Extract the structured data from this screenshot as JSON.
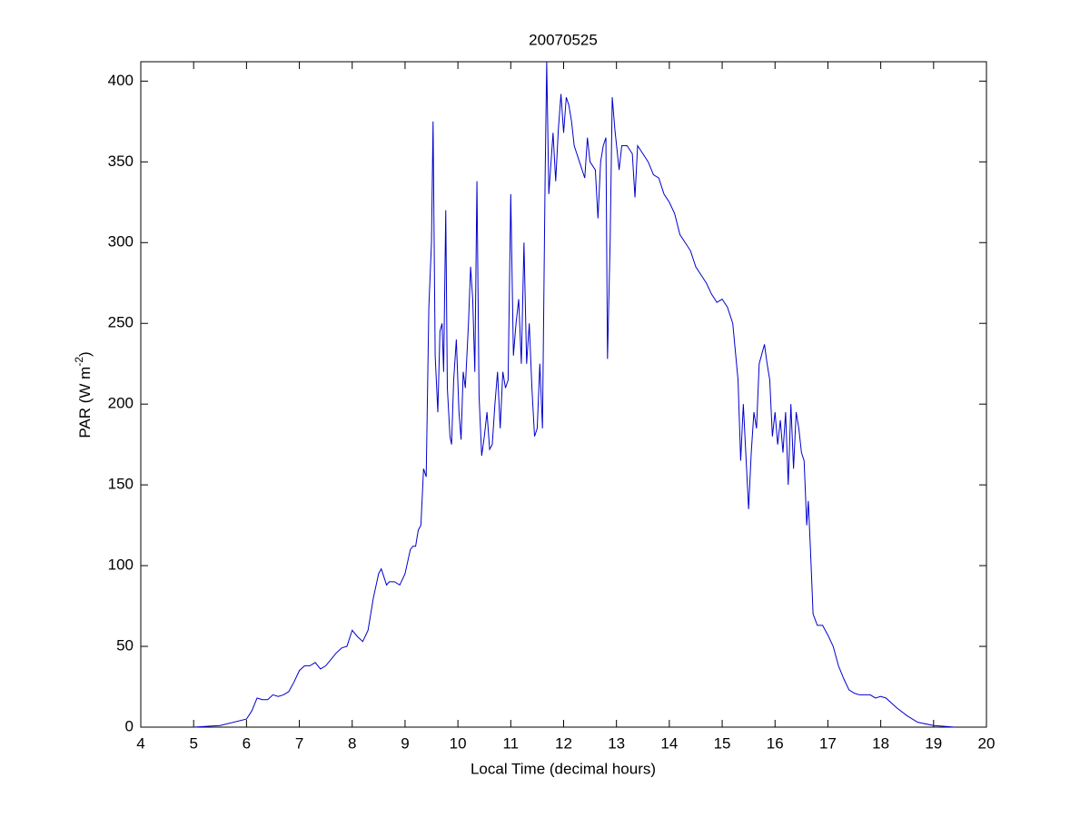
{
  "chart_data": {
    "type": "line",
    "title": "20070525",
    "xlabel": "Local Time (decimal hours)",
    "ylabel": [
      "PAR (W m",
      "-2",
      ")"
    ],
    "color": "#0000cc",
    "grid": false,
    "xlim": [
      4,
      20
    ],
    "xticks": [
      4,
      5,
      6,
      7,
      8,
      9,
      10,
      11,
      12,
      13,
      14,
      15,
      16,
      17,
      18,
      19,
      20
    ],
    "ylim": [
      0,
      412
    ],
    "yticks": [
      0,
      50,
      100,
      150,
      200,
      250,
      300,
      350,
      400
    ],
    "x": [
      5.0,
      5.5,
      6.0,
      6.1,
      6.2,
      6.3,
      6.4,
      6.5,
      6.6,
      6.7,
      6.8,
      6.9,
      7.0,
      7.1,
      7.2,
      7.3,
      7.4,
      7.5,
      7.6,
      7.7,
      7.8,
      7.9,
      8.0,
      8.1,
      8.2,
      8.3,
      8.4,
      8.5,
      8.55,
      8.6,
      8.65,
      8.7,
      8.8,
      8.9,
      9.0,
      9.1,
      9.15,
      9.2,
      9.25,
      9.3,
      9.35,
      9.4,
      9.45,
      9.5,
      9.53,
      9.57,
      9.62,
      9.66,
      9.7,
      9.73,
      9.77,
      9.8,
      9.85,
      9.88,
      9.92,
      9.97,
      10.02,
      10.06,
      10.1,
      10.14,
      10.2,
      10.24,
      10.28,
      10.32,
      10.36,
      10.4,
      10.45,
      10.5,
      10.55,
      10.6,
      10.65,
      10.7,
      10.75,
      10.8,
      10.85,
      10.9,
      10.95,
      11.0,
      11.05,
      11.1,
      11.15,
      11.2,
      11.25,
      11.3,
      11.35,
      11.4,
      11.45,
      11.5,
      11.55,
      11.6,
      11.65,
      11.68,
      11.72,
      11.8,
      11.85,
      11.9,
      11.95,
      12.0,
      12.05,
      12.1,
      12.15,
      12.2,
      12.3,
      12.4,
      12.45,
      12.5,
      12.6,
      12.65,
      12.7,
      12.75,
      12.8,
      12.83,
      12.88,
      12.92,
      12.97,
      13.05,
      13.1,
      13.2,
      13.3,
      13.35,
      13.4,
      13.5,
      13.6,
      13.7,
      13.8,
      13.9,
      14.0,
      14.1,
      14.2,
      14.3,
      14.4,
      14.5,
      14.6,
      14.7,
      14.8,
      14.9,
      15.0,
      15.1,
      15.2,
      15.3,
      15.35,
      15.4,
      15.5,
      15.55,
      15.6,
      15.65,
      15.7,
      15.8,
      15.85,
      15.9,
      15.95,
      16.0,
      16.05,
      16.1,
      16.15,
      16.2,
      16.25,
      16.3,
      16.35,
      16.4,
      16.45,
      16.5,
      16.55,
      16.6,
      16.63,
      16.67,
      16.72,
      16.8,
      16.9,
      17.0,
      17.1,
      17.2,
      17.3,
      17.4,
      17.5,
      17.6,
      17.8,
      17.9,
      18.0,
      18.1,
      18.3,
      18.5,
      18.7,
      19.0,
      19.4
    ],
    "values": [
      0,
      1,
      5,
      10,
      18,
      17,
      17,
      20,
      19,
      20,
      22,
      28,
      35,
      38,
      38,
      40,
      36,
      38,
      42,
      46,
      49,
      50,
      60,
      56,
      53,
      60,
      80,
      95,
      98,
      93,
      88,
      90,
      90,
      88,
      95,
      110,
      112,
      112,
      122,
      125,
      160,
      155,
      260,
      300,
      375,
      230,
      195,
      245,
      250,
      220,
      320,
      210,
      180,
      175,
      215,
      240,
      195,
      178,
      220,
      210,
      250,
      285,
      265,
      220,
      338,
      205,
      168,
      180,
      195,
      172,
      175,
      200,
      220,
      185,
      220,
      210,
      215,
      330,
      230,
      250,
      265,
      225,
      300,
      225,
      250,
      210,
      180,
      185,
      225,
      185,
      340,
      412,
      330,
      368,
      338,
      370,
      392,
      368,
      390,
      385,
      375,
      360,
      350,
      340,
      365,
      350,
      345,
      315,
      350,
      360,
      365,
      228,
      300,
      390,
      370,
      345,
      360,
      360,
      355,
      328,
      360,
      355,
      350,
      342,
      340,
      330,
      325,
      318,
      305,
      300,
      295,
      285,
      280,
      275,
      268,
      263,
      265,
      260,
      250,
      215,
      165,
      200,
      135,
      170,
      195,
      185,
      225,
      237,
      225,
      215,
      180,
      195,
      175,
      190,
      170,
      195,
      150,
      200,
      160,
      195,
      185,
      170,
      165,
      125,
      140,
      110,
      70,
      63,
      63,
      57,
      50,
      38,
      30,
      23,
      21,
      20,
      20,
      18,
      19,
      18,
      12,
      7,
      3,
      1,
      0
    ]
  }
}
